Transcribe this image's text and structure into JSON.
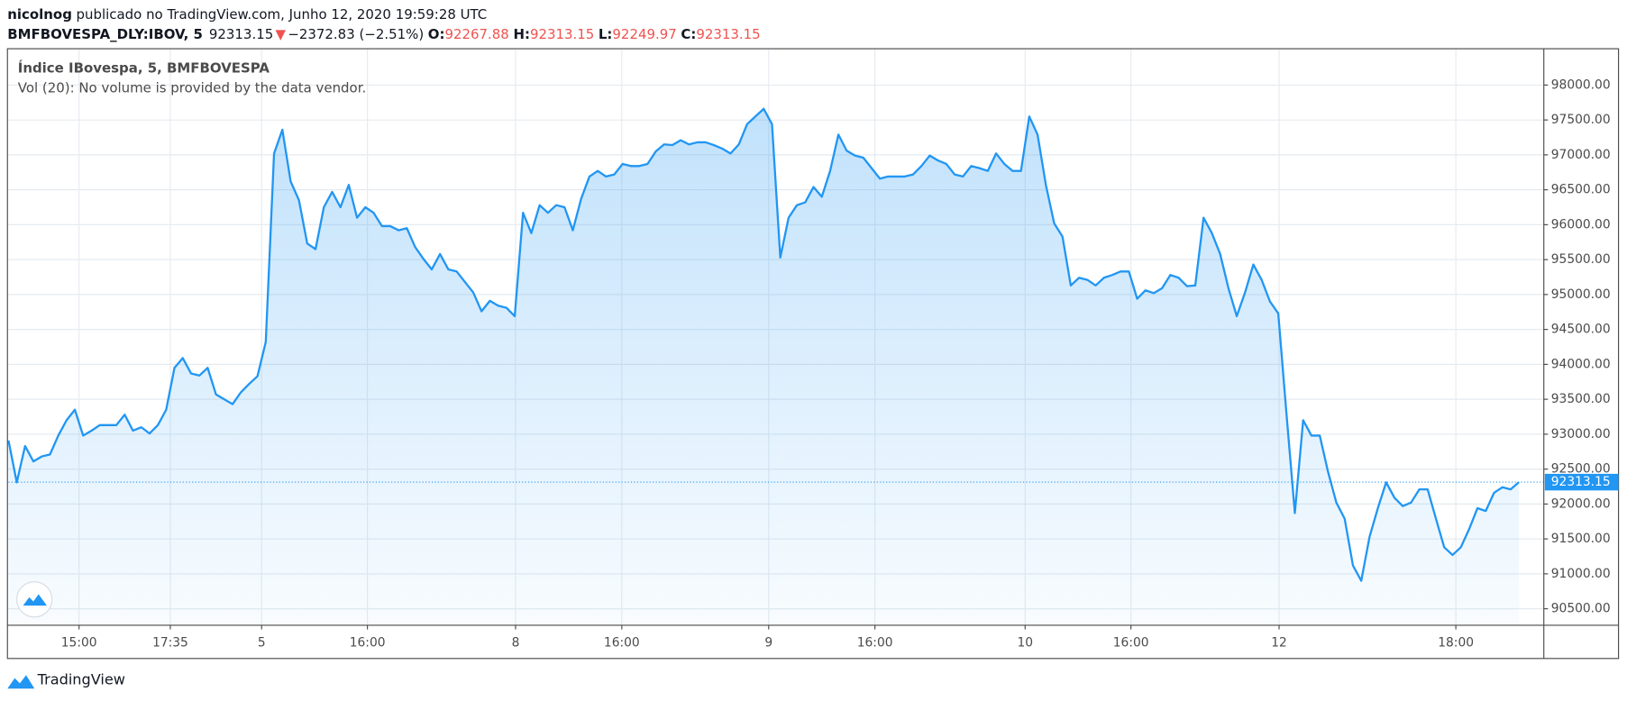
{
  "header": {
    "user": "nicolnog",
    "published": "publicado no TradingView.com, Junho 12, 2020 19:59:28 UTC",
    "symbol": "BMFBOVESPA_DLY:IBOV, 5",
    "last": "92313.15",
    "arrow": "▼",
    "change": "−2372.83 (−2.51%)",
    "ohlc": [
      {
        "label": "O:",
        "value": "92267.88"
      },
      {
        "label": "H:",
        "value": "92313.15"
      },
      {
        "label": "L:",
        "value": "92249.97"
      },
      {
        "label": "C:",
        "value": "92313.15"
      }
    ]
  },
  "footer": {
    "brand": "TradingView"
  },
  "chart_data": {
    "type": "area",
    "title": "Índice IBovespa, 5, BMFBOVESPA",
    "subtitle": "Vol (20): No volume is provided by the data vendor.",
    "color": "#2196f3",
    "grid": true,
    "values": [
      92910,
      92310,
      92830,
      92610,
      92680,
      92710,
      92980,
      93200,
      93350,
      92980,
      93050,
      93130,
      93130,
      93130,
      93280,
      93050,
      93100,
      93010,
      93130,
      93350,
      93950,
      94090,
      93870,
      93840,
      93950,
      93570,
      93500,
      93430,
      93600,
      93720,
      93830,
      94320,
      97020,
      97360,
      96620,
      96350,
      95730,
      95650,
      96250,
      96470,
      96250,
      96570,
      96100,
      96250,
      96170,
      95980,
      95980,
      95920,
      95950,
      95680,
      95510,
      95360,
      95580,
      95360,
      95330,
      95180,
      95030,
      94760,
      94910,
      94840,
      94810,
      94690,
      96170,
      95880,
      96280,
      96170,
      96280,
      96250,
      95920,
      96370,
      96690,
      96770,
      96690,
      96720,
      96870,
      96840,
      96840,
      96870,
      97050,
      97150,
      97140,
      97210,
      97150,
      97180,
      97180,
      97140,
      97090,
      97020,
      97150,
      97440,
      97550,
      97660,
      97440,
      95530,
      96100,
      96280,
      96320,
      96540,
      96400,
      96770,
      97290,
      97060,
      96990,
      96960,
      96810,
      96660,
      96690,
      96690,
      96690,
      96720,
      96840,
      96990,
      96920,
      96870,
      96720,
      96690,
      96840,
      96810,
      96770,
      97020,
      96870,
      96770,
      96770,
      97550,
      97290,
      96570,
      96020,
      95830,
      95130,
      95240,
      95210,
      95130,
      95240,
      95280,
      95330,
      95330,
      94940,
      95060,
      95020,
      95090,
      95280,
      95240,
      95120,
      95130,
      96100,
      95880,
      95580,
      95090,
      94690,
      95030,
      95430,
      95210,
      94900,
      94730,
      93280,
      91870,
      93200,
      92980,
      92980,
      92460,
      92020,
      91790,
      91120,
      90900,
      91530,
      91940,
      92310,
      92090,
      91970,
      92020,
      92210,
      92210,
      91790,
      91380,
      91270,
      91380,
      91640,
      91940,
      91900,
      92160,
      92240,
      92210,
      92313.15
    ],
    "xlim": [
      0,
      185
    ],
    "xticks": [
      {
        "value": 8.5,
        "label": "15:00"
      },
      {
        "value": 19.5,
        "label": "17:35"
      },
      {
        "value": 30.5,
        "label": "5"
      },
      {
        "value": 43.25,
        "label": "16:00"
      },
      {
        "value": 61.1,
        "label": "8"
      },
      {
        "value": 73.9,
        "label": "16:00"
      },
      {
        "value": 91.6,
        "label": "9"
      },
      {
        "value": 104.4,
        "label": "16:00"
      },
      {
        "value": 122.5,
        "label": "10"
      },
      {
        "value": 135.25,
        "label": "16:00"
      },
      {
        "value": 153.1,
        "label": "12"
      },
      {
        "value": 174.4,
        "label": "18:00"
      }
    ],
    "ylim": [
      90263,
      98520
    ],
    "yticks": [
      {
        "value": 90500,
        "label": "90500.00"
      },
      {
        "value": 91000,
        "label": "91000.00"
      },
      {
        "value": 91500,
        "label": "91500.00"
      },
      {
        "value": 92000,
        "label": "92000.00"
      },
      {
        "value": 92500,
        "label": "92500.00"
      },
      {
        "value": 93000,
        "label": "93000.00"
      },
      {
        "value": 93500,
        "label": "93500.00"
      },
      {
        "value": 94000,
        "label": "94000.00"
      },
      {
        "value": 94500,
        "label": "94500.00"
      },
      {
        "value": 95000,
        "label": "95000.00"
      },
      {
        "value": 95500,
        "label": "95500.00"
      },
      {
        "value": 96000,
        "label": "96000.00"
      },
      {
        "value": 96500,
        "label": "96500.00"
      },
      {
        "value": 97000,
        "label": "97000.00"
      },
      {
        "value": 97500,
        "label": "97500.00"
      },
      {
        "value": 98000,
        "label": "98000.00"
      }
    ]
  }
}
